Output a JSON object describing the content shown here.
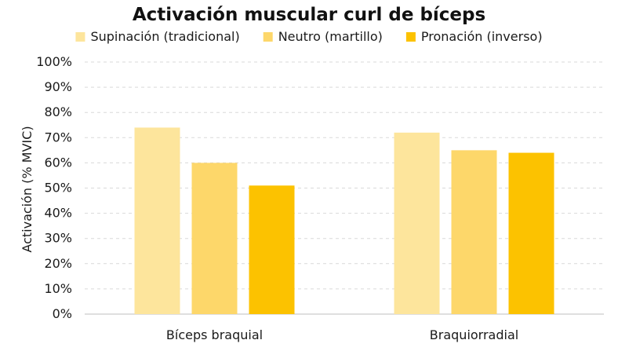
{
  "chart_data": {
    "type": "bar",
    "title": "Activación muscular curl de bíceps",
    "ylabel": "Activación (% MVIC)",
    "xlabel": "",
    "categories": [
      "Bíceps braquial",
      "Braquiorradial"
    ],
    "series": [
      {
        "name": "Supinación (tradicional)",
        "values": [
          74,
          72
        ],
        "color": "#fde59c"
      },
      {
        "name": "Neutro (martillo)",
        "values": [
          60,
          65
        ],
        "color": "#fdd76a"
      },
      {
        "name": "Pronación (inverso)",
        "values": [
          51,
          64
        ],
        "color": "#fcc200"
      }
    ],
    "ylim": [
      0,
      100
    ],
    "yticks": [
      "0%",
      "10%",
      "20%",
      "30%",
      "40%",
      "50%",
      "60%",
      "70%",
      "80%",
      "90%",
      "100%"
    ],
    "grid": true,
    "legend_position": "top"
  }
}
